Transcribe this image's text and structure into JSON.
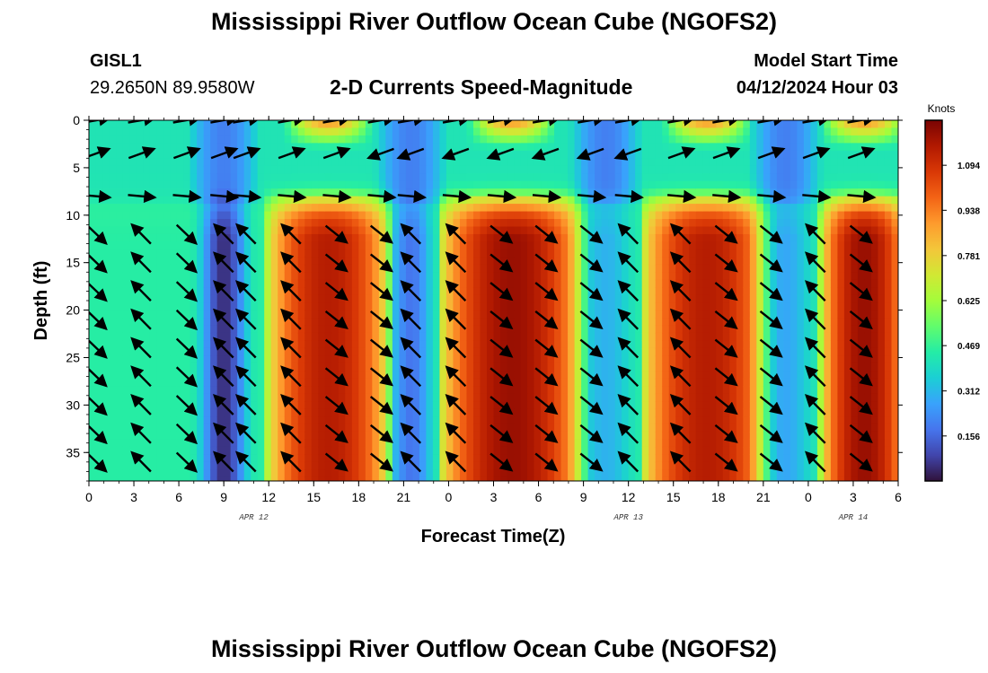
{
  "header": {
    "title": "Mississippi River Outflow Ocean Cube (NGOFS2)",
    "station": "GISL1",
    "coordinates": "29.2650N  89.9580W",
    "subtitle": "2-D Currents Speed-Magnitude",
    "model_start_label": "Model Start Time",
    "model_start_value": "04/12/2024 Hour 03"
  },
  "footer": {
    "title": "Mississippi River Outflow Ocean Cube (NGOFS2)"
  },
  "colors": {
    "ramp": [
      "#30123b",
      "#4145ab",
      "#4675ed",
      "#39a2fc",
      "#1bcfd4",
      "#24eca6",
      "#61fc6c",
      "#a4fc3b",
      "#d1e834",
      "#f3c63a",
      "#fe9b2d",
      "#f36315",
      "#d93806",
      "#b11901",
      "#7a0403"
    ],
    "arrow": "#000000"
  },
  "chart_data": {
    "type": "heatmap",
    "title": "2-D Currents Speed-Magnitude",
    "xlabel": "Forecast Time(Z)",
    "ylabel": "Depth (ft)",
    "x_range_hours": [
      0,
      54
    ],
    "ylim": [
      0,
      38
    ],
    "y_inverted": true,
    "x_tick_labels": [
      "0",
      "3",
      "6",
      "9",
      "12",
      "15",
      "18",
      "21",
      "0",
      "3",
      "6",
      "9",
      "12",
      "15",
      "18",
      "21",
      "0",
      "3",
      "6"
    ],
    "y_ticks": [
      0,
      5,
      10,
      15,
      20,
      25,
      30,
      35
    ],
    "date_labels": [
      {
        "text": "APR 12",
        "hour": 11
      },
      {
        "text": "APR 13",
        "hour": 36
      },
      {
        "text": "APR 14",
        "hour": 51
      }
    ],
    "colorbar": {
      "unit": "Knots",
      "min": 0.0,
      "max": 1.25,
      "ticks": [
        "0.156",
        "0.312",
        "0.469",
        "0.625",
        "0.781",
        "0.938",
        "1.094"
      ]
    },
    "high_speed_bands_hours": [
      {
        "start": 12.5,
        "end": 19.5,
        "peak": 1.15
      },
      {
        "start": 24.0,
        "end": 32.5,
        "peak": 1.2
      },
      {
        "start": 37.5,
        "end": 45.0,
        "peak": 1.15
      },
      {
        "start": 49.5,
        "end": 54.0,
        "peak": 1.2
      }
    ],
    "low_speed_bands_hours": [
      {
        "center": 9.0,
        "width": 1.3,
        "min": 0.05
      },
      {
        "center": 21.5,
        "width": 1.2,
        "min": 0.18
      },
      {
        "center": 34.5,
        "width": 1.5,
        "min": 0.3
      },
      {
        "center": 46.5,
        "width": 1.5,
        "min": 0.28
      }
    ],
    "surface_layer_depth_ft": 8.5,
    "arrow_times_hours": [
      0.5,
      3.5,
      6.5,
      9.0,
      10.5,
      13.5,
      16.5,
      19.5,
      21.5,
      24.5,
      27.5,
      30.5,
      33.5,
      36.0,
      39.5,
      42.5,
      45.5,
      48.5,
      51.5
    ],
    "arrow_depths_ft": [
      0,
      3.5,
      8,
      12,
      15,
      18,
      21,
      24,
      27,
      30,
      33,
      36
    ]
  }
}
